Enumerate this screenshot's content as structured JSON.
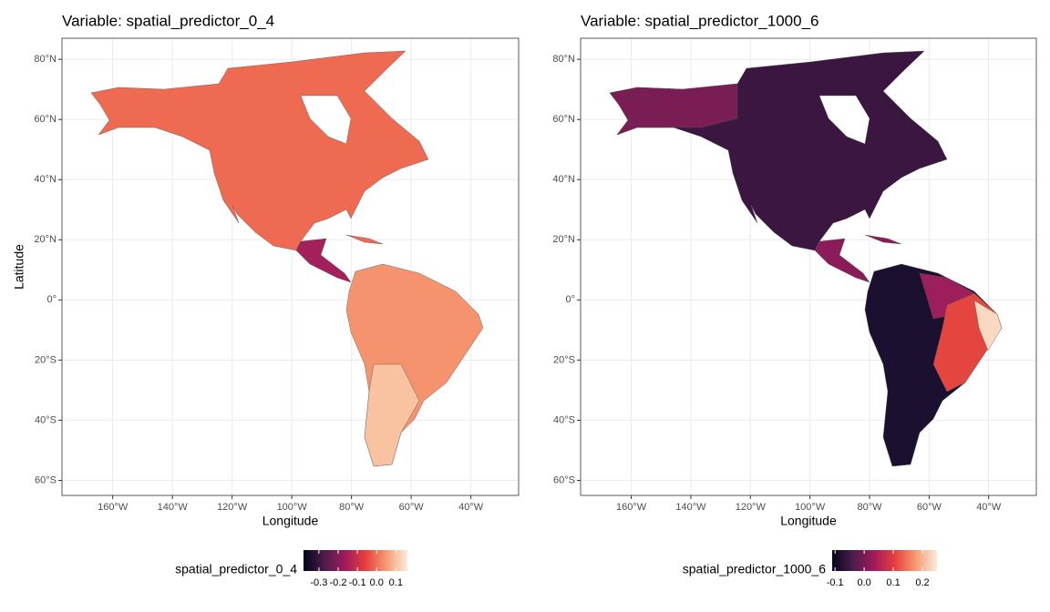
{
  "chart_data": [
    {
      "type": "map",
      "title": "Variable: spatial_predictor_0_4",
      "xlabel": "Longitude",
      "ylabel": "Latitude",
      "xlim": [
        -177,
        -24
      ],
      "ylim": [
        -65,
        87
      ],
      "xticks": [
        {
          "value": -160,
          "label": "160°W"
        },
        {
          "value": -140,
          "label": "140°W"
        },
        {
          "value": -120,
          "label": "120°W"
        },
        {
          "value": -100,
          "label": "100°W"
        },
        {
          "value": -80,
          "label": "80°W"
        },
        {
          "value": -60,
          "label": "60°W"
        },
        {
          "value": -40,
          "label": "40°W"
        }
      ],
      "yticks": [
        {
          "value": -60,
          "label": "60°S"
        },
        {
          "value": -40,
          "label": "40°S"
        },
        {
          "value": -20,
          "label": "20°S"
        },
        {
          "value": 0,
          "label": "0°"
        },
        {
          "value": 20,
          "label": "20°N"
        },
        {
          "value": 40,
          "label": "40°N"
        },
        {
          "value": 60,
          "label": "60°N"
        },
        {
          "value": 80,
          "label": "80°N"
        }
      ],
      "grid": true,
      "legend": {
        "title": "spatial_predictor_0_4",
        "lim": [
          -0.38,
          0.16
        ],
        "ticks": [
          -0.3,
          -0.2,
          -0.1,
          {
            "value": 0,
            "label": "0.0"
          },
          0.1
        ],
        "colors": [
          "#03051a",
          "#4c1d4b",
          "#a11a5b",
          "#e83f3f",
          "#f69c73",
          "#faebdd"
        ]
      }
    },
    {
      "type": "map",
      "title": "Variable: spatial_predictor_1000_6",
      "xlabel": "Longitude",
      "xlim": [
        -177,
        -24
      ],
      "ylim": [
        -65,
        87
      ],
      "xticks": [
        {
          "value": -160,
          "label": "160°W"
        },
        {
          "value": -140,
          "label": "140°W"
        },
        {
          "value": -120,
          "label": "120°W"
        },
        {
          "value": -100,
          "label": "100°W"
        },
        {
          "value": -80,
          "label": "80°W"
        },
        {
          "value": -60,
          "label": "60°W"
        },
        {
          "value": -40,
          "label": "40°W"
        }
      ],
      "yticks": [
        {
          "value": -60,
          "label": "60°S"
        },
        {
          "value": -40,
          "label": "40°S"
        },
        {
          "value": -20,
          "label": "20°S"
        },
        {
          "value": 0,
          "label": "0°"
        },
        {
          "value": 20,
          "label": "20°N"
        },
        {
          "value": 40,
          "label": "40°N"
        },
        {
          "value": 60,
          "label": "60°N"
        },
        {
          "value": 80,
          "label": "80°N"
        }
      ],
      "grid": true,
      "legend": {
        "title": "spatial_predictor_1000_6",
        "lim": [
          -0.11,
          0.25
        ],
        "ticks": [
          -0.1,
          {
            "value": 0,
            "label": "0.0"
          },
          0.1,
          0.2
        ],
        "colors": [
          "#03051a",
          "#4c1d4b",
          "#a11a5b",
          "#e83f3f",
          "#f69c73",
          "#faebdd"
        ]
      }
    }
  ]
}
